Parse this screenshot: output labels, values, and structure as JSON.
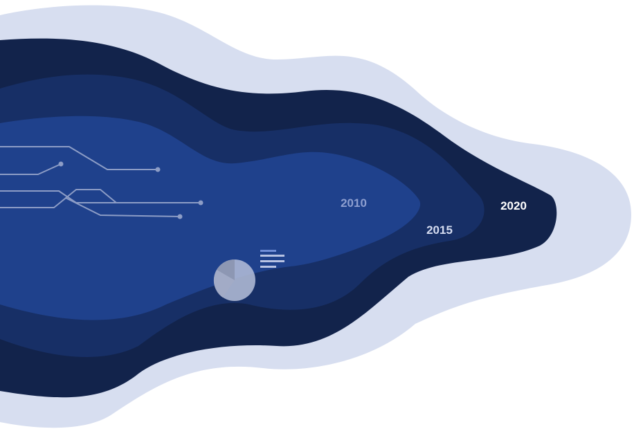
{
  "diagram": {
    "year_labels": [
      {
        "text": "2010",
        "color": "#8e9fd0"
      },
      {
        "text": "2015",
        "color": "#d5dcf0"
      },
      {
        "text": "2020",
        "color": "#ffffff"
      }
    ]
  },
  "colors": {
    "background": "#ffffff",
    "outer_halo": "#d7def0",
    "layer_2020": "#12234b",
    "layer_2015": "#172f66",
    "layer_2010": "#1f418c",
    "circuit_lines": "#8d9dc6",
    "pie_light": "#b6bfd9",
    "pie_dark": "#8d97b3",
    "legend_lines": "#b8c3e3"
  },
  "icons": {
    "circuit": "circuit-lines-icon",
    "pie": "pie-chart-icon",
    "legend": "legend-lines-icon"
  }
}
